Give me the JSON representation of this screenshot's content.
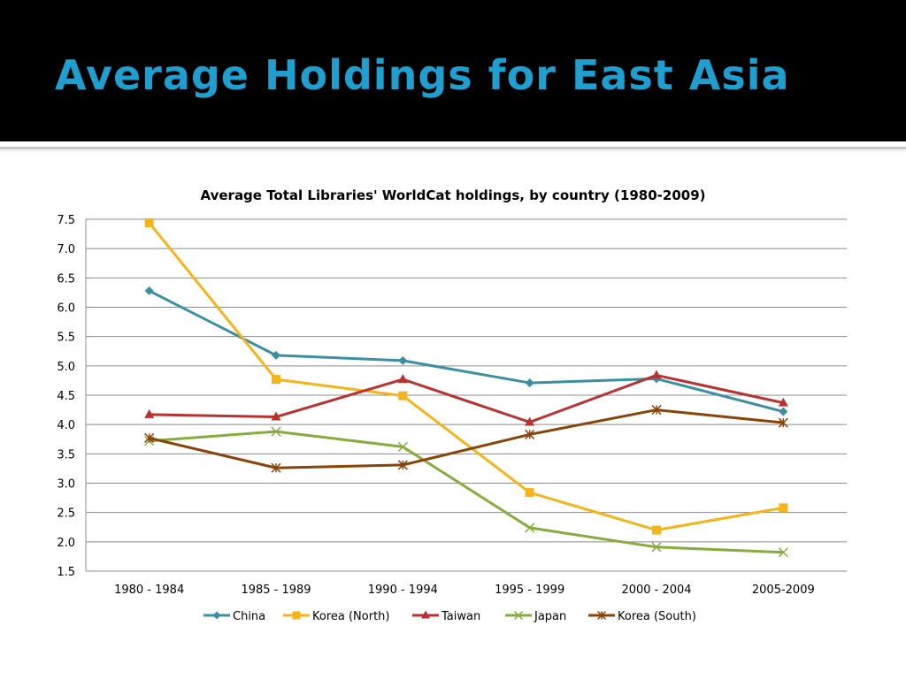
{
  "slide": {
    "title": "Average Holdings for East Asia"
  },
  "colors": {
    "title": "#1f9fd0",
    "background_header": "#000000",
    "gridline": "#8c8c8c"
  },
  "chart_data": {
    "type": "line",
    "title": "Average Total Libraries' WorldCat holdings, by country (1980-2009)",
    "xlabel": "",
    "ylabel": "",
    "categories": [
      "1980 - 1984",
      "1985 - 1989",
      "1990 - 1994",
      "1995 - 1999",
      "2000 - 2004",
      "2005-2009"
    ],
    "ylim": [
      1.5,
      7.5
    ],
    "yticks": [
      "1.5",
      "2.0",
      "2.5",
      "3.0",
      "3.5",
      "4.0",
      "4.5",
      "5.0",
      "5.5",
      "6.0",
      "6.5",
      "7.0",
      "7.5"
    ],
    "grid": true,
    "legend_position": "bottom",
    "series": [
      {
        "name": "China",
        "color": "#3c8fa2",
        "marker": "diamond",
        "values": [
          6.28,
          5.18,
          5.09,
          4.71,
          4.78,
          4.22
        ]
      },
      {
        "name": "Korea (North)",
        "color": "#f4b41a",
        "marker": "square",
        "values": [
          7.44,
          4.77,
          4.49,
          2.84,
          2.2,
          2.58
        ]
      },
      {
        "name": "Taiwan",
        "color": "#b93232",
        "marker": "triangle",
        "values": [
          4.17,
          4.13,
          4.77,
          4.04,
          4.84,
          4.37
        ]
      },
      {
        "name": "Japan",
        "color": "#86ac3e",
        "marker": "x",
        "values": [
          3.72,
          3.88,
          3.62,
          2.24,
          1.91,
          1.82
        ]
      },
      {
        "name": "Korea (South)",
        "color": "#8a4308",
        "marker": "star",
        "values": [
          3.77,
          3.26,
          3.31,
          3.83,
          4.25,
          4.03
        ]
      }
    ]
  }
}
